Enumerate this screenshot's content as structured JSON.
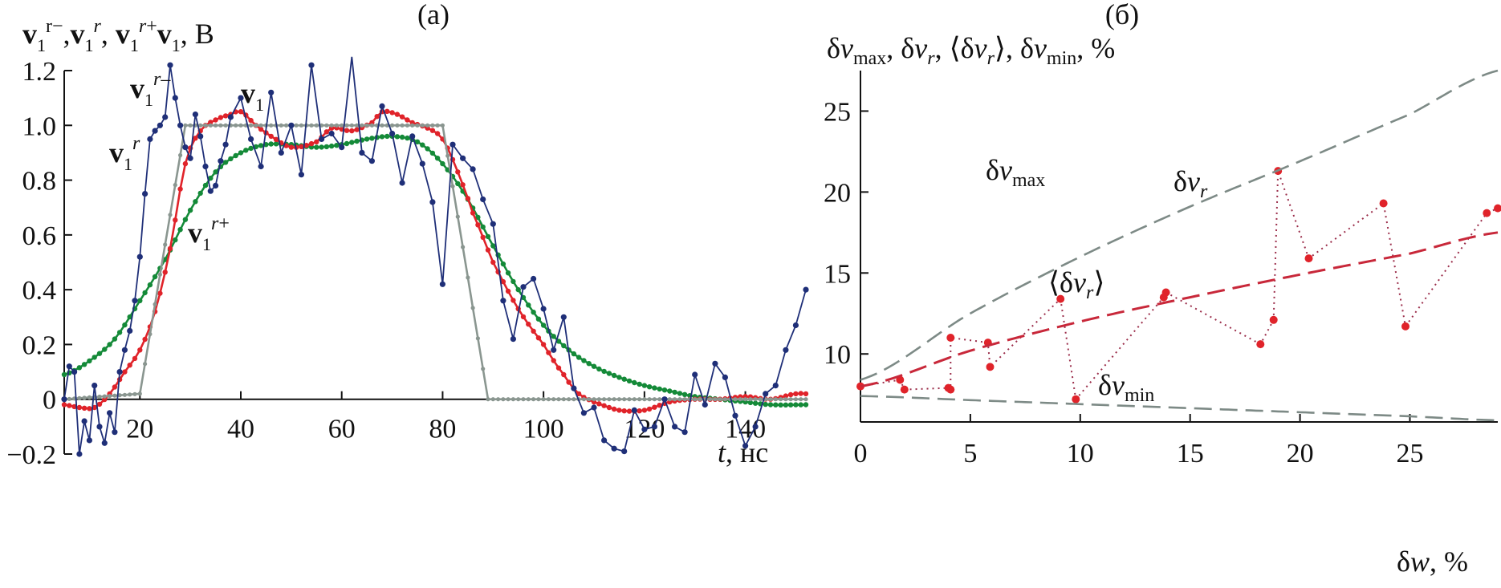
{
  "colors": {
    "v1": "#1f2f78",
    "vr": "#8a9690",
    "vr_minus": "#e0232a",
    "vr_plus": "#148a38",
    "dv_r": "#e0232a",
    "dv_r_line": "#9b2d4a",
    "dv_avg": "#c8283a",
    "dv_bound": "#7d8a86",
    "axis": "#111111"
  },
  "chart_data": [
    {
      "panel": "a",
      "type": "line",
      "panel_label": "(а)",
      "ylabel": "v1r−,v1r, v1r+v1, В",
      "xlabel_var": "t",
      "xlabel_unit": ", нс",
      "xlim": [
        5,
        152
      ],
      "ylim": [
        -0.2,
        1.2
      ],
      "xticks": [
        20,
        40,
        60,
        80,
        100,
        120,
        140
      ],
      "yticks": [
        -0.2,
        0,
        0.2,
        0.4,
        0.6,
        0.8,
        1.0,
        1.2
      ],
      "yticklabels": [
        "−0.2",
        "0",
        "0.2",
        "0.4",
        "0.6",
        "0.8",
        "1.0",
        "1.2"
      ],
      "annotations": [
        {
          "text": "v1r−",
          "x": 24,
          "y": 1.11
        },
        {
          "text": "v1",
          "x": 49,
          "y": 1.08
        },
        {
          "text": "v1r",
          "x": 14,
          "y": 0.88
        },
        {
          "text": "v1r+",
          "x": 38,
          "y": 0.57
        }
      ],
      "series": [
        {
          "name": "v1r",
          "color_key": "vr",
          "dt": 1,
          "x": [
            5,
            20,
            29,
            80,
            89,
            152
          ],
          "y": [
            0,
            0.02,
            1.0,
            1.0,
            0,
            0
          ]
        },
        {
          "name": "v1r+",
          "color_key": "vr_plus",
          "dt": 1,
          "x": [
            5,
            10,
            15,
            20,
            25,
            30,
            35,
            40,
            45,
            50,
            55,
            60,
            65,
            70,
            75,
            80,
            85,
            90,
            95,
            100,
            105,
            110,
            115,
            120,
            125,
            130,
            135,
            140,
            145,
            152
          ],
          "y": [
            0.09,
            0.14,
            0.22,
            0.36,
            0.51,
            0.69,
            0.83,
            0.9,
            0.93,
            0.93,
            0.92,
            0.93,
            0.95,
            0.96,
            0.94,
            0.86,
            0.73,
            0.56,
            0.4,
            0.27,
            0.18,
            0.12,
            0.08,
            0.05,
            0.03,
            0.01,
            0.0,
            -0.01,
            -0.02,
            -0.02
          ]
        },
        {
          "name": "v1r−",
          "color_key": "vr_minus",
          "dt": 1,
          "x": [
            5,
            8,
            11,
            14,
            17,
            20,
            23,
            26,
            29,
            32,
            35,
            38,
            40,
            43,
            46,
            50,
            55,
            58,
            62,
            66,
            68,
            71,
            74,
            77,
            80,
            83,
            86,
            90,
            95,
            100,
            104,
            107,
            110,
            115,
            120,
            125,
            130,
            135,
            140,
            145,
            150,
            152
          ],
          "y": [
            -0.02,
            -0.03,
            -0.03,
            0.02,
            0.1,
            0.18,
            0.32,
            0.55,
            0.86,
            0.98,
            1.02,
            1.04,
            1.05,
            1.0,
            0.96,
            0.92,
            0.94,
            0.99,
            0.98,
            1.01,
            1.05,
            1.04,
            1.01,
            0.99,
            0.95,
            0.83,
            0.68,
            0.5,
            0.33,
            0.2,
            0.09,
            0.02,
            -0.01,
            -0.04,
            -0.04,
            -0.01,
            0.0,
            0.0,
            0.01,
            0.0,
            0.02,
            0.02
          ]
        },
        {
          "name": "v1",
          "color_key": "v1",
          "dt": 1,
          "noise": 0.09,
          "seed": 7,
          "x": [
            5,
            6,
            7,
            8,
            9,
            10,
            11,
            12,
            13,
            14,
            15,
            16,
            17,
            18,
            19,
            20,
            21,
            22,
            23,
            24,
            25,
            26,
            27,
            28,
            29,
            30,
            31,
            32,
            33,
            34,
            35,
            36,
            37,
            38,
            40,
            42,
            44,
            46,
            48,
            50,
            52,
            54,
            56,
            58,
            60,
            62,
            64,
            66,
            68,
            70,
            72,
            74,
            76,
            78,
            80,
            82,
            84,
            86,
            88,
            90,
            92,
            94,
            96,
            98,
            100,
            102,
            104,
            106,
            108,
            110,
            112,
            114,
            116,
            118,
            120,
            122,
            124,
            126,
            128,
            130,
            132,
            134,
            136,
            138,
            140,
            142,
            144,
            146,
            148,
            150,
            152
          ],
          "y": [
            0.0,
            0.12,
            0.1,
            -0.2,
            -0.08,
            -0.15,
            0.05,
            -0.1,
            -0.16,
            -0.05,
            -0.12,
            0.1,
            0.18,
            0.25,
            0.36,
            0.52,
            0.75,
            0.95,
            0.98,
            1.0,
            1.03,
            1.22,
            1.1,
            1.0,
            0.92,
            0.88,
            1.04,
            0.96,
            0.85,
            0.76,
            0.78,
            0.87,
            0.93,
            1.03,
            1.1,
            0.95,
            0.85,
            1.12,
            0.9,
            1.0,
            0.82,
            1.22,
            0.95,
            0.97,
            0.92,
            1.25,
            0.9,
            0.87,
            1.07,
            0.97,
            0.79,
            0.96,
            0.86,
            0.72,
            0.42,
            0.93,
            0.88,
            0.84,
            0.73,
            0.64,
            0.36,
            0.22,
            0.41,
            0.44,
            0.33,
            0.18,
            0.3,
            0.04,
            -0.05,
            -0.03,
            -0.15,
            -0.18,
            -0.19,
            -0.04,
            -0.11,
            -0.1,
            0.0,
            -0.1,
            -0.12,
            0.09,
            -0.02,
            0.13,
            0.08,
            -0.06,
            -0.17,
            -0.1,
            0.02,
            0.05,
            0.18,
            0.27,
            0.4
          ]
        }
      ]
    },
    {
      "panel": "б",
      "type": "scatter",
      "panel_label": "(б)",
      "ylabel": "δvmax, δvr, ⟨δvr⟩, δvmin, %",
      "xlabel": "δw, %",
      "xlim": [
        0,
        29
      ],
      "ylim": [
        5.8,
        27.5
      ],
      "xticks": [
        0,
        5,
        10,
        15,
        20,
        25
      ],
      "yticks": [
        10,
        15,
        20,
        25
      ],
      "annotations": [
        {
          "text": "δvmax",
          "x": 11,
          "y": 21
        },
        {
          "text": "δvr",
          "x": 23.5,
          "y": 20
        },
        {
          "text": "⟨δvr⟩",
          "x": 15,
          "y": 15.5
        },
        {
          "text": "δvmin",
          "x": 20.5,
          "y": 7.5
        }
      ],
      "series": [
        {
          "name": "δvr",
          "color_key": "dv_r",
          "x": [
            0,
            1.8,
            2.0,
            4.0,
            4.1,
            4.1,
            5.8,
            5.9,
            9.1,
            9.8,
            13.8,
            13.9,
            18.2,
            18.8,
            19.0,
            20.4,
            23.8,
            24.8,
            28.5,
            29
          ],
          "y": [
            8.0,
            8.4,
            7.8,
            7.9,
            7.8,
            11.0,
            10.7,
            9.2,
            13.4,
            7.2,
            13.5,
            13.8,
            10.6,
            12.1,
            21.3,
            15.9,
            19.3,
            11.7,
            18.7,
            19.0
          ]
        },
        {
          "name": "⟨δvr⟩",
          "color_key": "dv_avg",
          "type": "fit",
          "x": [
            0,
            5,
            10,
            15,
            20,
            25,
            29
          ],
          "y": [
            8.0,
            10.2,
            12.0,
            13.5,
            14.9,
            16.2,
            17.5
          ]
        },
        {
          "name": "δvmax",
          "color_key": "dv_bound",
          "type": "bound",
          "x": [
            0,
            5,
            10,
            15,
            20,
            25,
            29
          ],
          "y": [
            8.4,
            12.5,
            16.0,
            19.1,
            21.9,
            24.8,
            27.5
          ]
        },
        {
          "name": "δvmin",
          "color_key": "dv_bound",
          "type": "bound",
          "x": [
            0,
            5,
            10,
            15,
            20,
            25,
            29
          ],
          "y": [
            7.4,
            7.15,
            6.9,
            6.65,
            6.4,
            6.15,
            5.9
          ]
        }
      ]
    }
  ]
}
